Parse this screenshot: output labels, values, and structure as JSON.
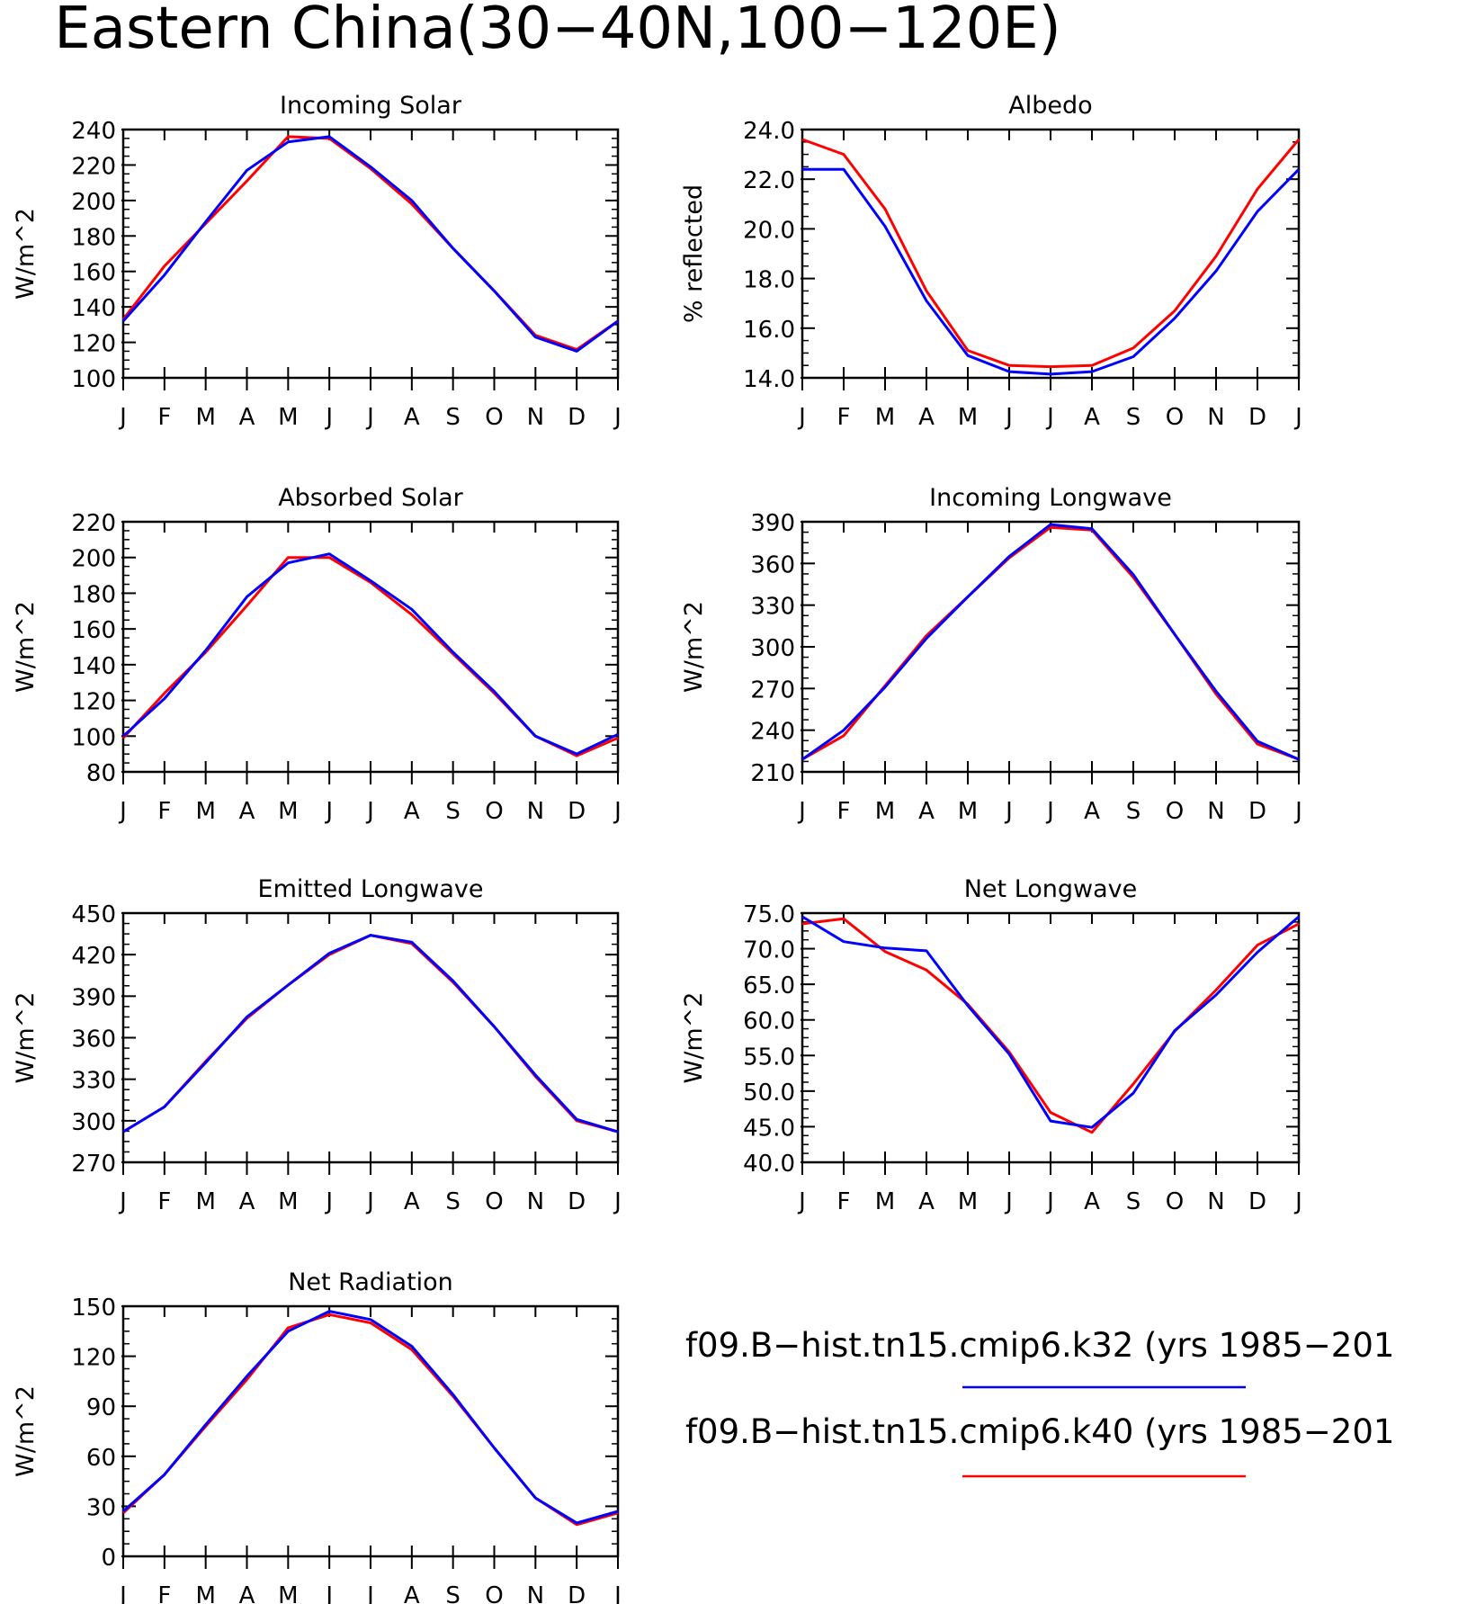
{
  "main_title": "Eastern China(30−40N,100−120E)",
  "colors": {
    "k32": "#0000ff",
    "k40": "#ff0000",
    "axis": "#000000"
  },
  "legend": [
    {
      "label": "f09.B−hist.tn15.cmip6.k32 (yrs 1985−201",
      "color": "#0000ff"
    },
    {
      "label": "f09.B−hist.tn15.cmip6.k40 (yrs 1985−201",
      "color": "#ff0000"
    }
  ],
  "chart_data": [
    {
      "type": "line",
      "title": "Incoming Solar",
      "ylabel": "W/m^2",
      "categories": [
        "J",
        "F",
        "M",
        "A",
        "M",
        "J",
        "J",
        "A",
        "S",
        "O",
        "N",
        "D",
        "J"
      ],
      "ylim": [
        100,
        240
      ],
      "yticks": [
        "100",
        "120",
        "140",
        "160",
        "180",
        "200",
        "220",
        "240"
      ],
      "series": [
        {
          "name": "k40",
          "color": "#ff0000",
          "values": [
            133,
            163,
            187,
            211,
            236,
            235,
            218,
            198,
            173,
            149,
            124,
            116,
            132
          ]
        },
        {
          "name": "k32",
          "color": "#0000ff",
          "values": [
            132,
            158,
            188,
            217,
            233,
            236,
            219,
            200,
            173,
            149,
            123,
            115,
            132
          ]
        }
      ]
    },
    {
      "type": "line",
      "title": "Albedo",
      "ylabel": "% reflected",
      "categories": [
        "J",
        "F",
        "M",
        "A",
        "M",
        "J",
        "J",
        "A",
        "S",
        "O",
        "N",
        "D",
        "J"
      ],
      "ylim": [
        14.0,
        24.0
      ],
      "yticks": [
        "14.0",
        "16.0",
        "18.0",
        "20.0",
        "22.0",
        "24.0"
      ],
      "series": [
        {
          "name": "k40",
          "color": "#ff0000",
          "values": [
            23.6,
            23.0,
            20.8,
            17.5,
            15.1,
            14.5,
            14.45,
            14.5,
            15.2,
            16.7,
            18.9,
            21.6,
            23.6
          ]
        },
        {
          "name": "k32",
          "color": "#0000ff",
          "values": [
            22.4,
            22.4,
            20.1,
            17.1,
            14.9,
            14.25,
            14.15,
            14.25,
            14.85,
            16.4,
            18.3,
            20.7,
            22.4
          ]
        }
      ]
    },
    {
      "type": "line",
      "title": "Absorbed Solar",
      "ylabel": "W/m^2",
      "categories": [
        "J",
        "F",
        "M",
        "A",
        "M",
        "J",
        "J",
        "A",
        "S",
        "O",
        "N",
        "D",
        "J"
      ],
      "ylim": [
        80,
        220
      ],
      "yticks": [
        "80",
        "100",
        "120",
        "140",
        "160",
        "180",
        "200",
        "220"
      ],
      "series": [
        {
          "name": "k40",
          "color": "#ff0000",
          "values": [
            99,
            124,
            147,
            173,
            200,
            200,
            186,
            168,
            146,
            124,
            100,
            89,
            99
          ]
        },
        {
          "name": "k32",
          "color": "#0000ff",
          "values": [
            100,
            121,
            148,
            178,
            197,
            202,
            187,
            171,
            147,
            125,
            100,
            90,
            101
          ]
        }
      ]
    },
    {
      "type": "line",
      "title": "Incoming Longwave",
      "ylabel": "W/m^2",
      "categories": [
        "J",
        "F",
        "M",
        "A",
        "M",
        "J",
        "J",
        "A",
        "S",
        "O",
        "N",
        "D",
        "J"
      ],
      "ylim": [
        210,
        390
      ],
      "yticks": [
        "210",
        "240",
        "270",
        "300",
        "330",
        "360",
        "390"
      ],
      "series": [
        {
          "name": "k40",
          "color": "#ff0000",
          "values": [
            219,
            236,
            272,
            308,
            336,
            364,
            386,
            384,
            350,
            309,
            266,
            230,
            219
          ]
        },
        {
          "name": "k32",
          "color": "#0000ff",
          "values": [
            219,
            240,
            271,
            306,
            336,
            365,
            388,
            385,
            352,
            309,
            268,
            232,
            219
          ]
        }
      ]
    },
    {
      "type": "line",
      "title": "Emitted Longwave",
      "ylabel": "W/m^2",
      "categories": [
        "J",
        "F",
        "M",
        "A",
        "M",
        "J",
        "J",
        "A",
        "S",
        "O",
        "N",
        "D",
        "J"
      ],
      "ylim": [
        270,
        450
      ],
      "yticks": [
        "270",
        "300",
        "330",
        "360",
        "390",
        "420",
        "450"
      ],
      "series": [
        {
          "name": "k40",
          "color": "#ff0000",
          "values": [
            292,
            310,
            343,
            374,
            398,
            420,
            434,
            428,
            400,
            368,
            332,
            300,
            292
          ]
        },
        {
          "name": "k32",
          "color": "#0000ff",
          "values": [
            292,
            310,
            342,
            375,
            398,
            421,
            434,
            429,
            401,
            368,
            333,
            301,
            292
          ]
        }
      ]
    },
    {
      "type": "line",
      "title": "Net Longwave",
      "ylabel": "W/m^2",
      "categories": [
        "J",
        "F",
        "M",
        "A",
        "M",
        "J",
        "J",
        "A",
        "S",
        "O",
        "N",
        "D",
        "J"
      ],
      "ylim": [
        40.0,
        75.0
      ],
      "yticks": [
        "40.0",
        "45.0",
        "50.0",
        "55.0",
        "60.0",
        "65.0",
        "70.0",
        "75.0"
      ],
      "series": [
        {
          "name": "k40",
          "color": "#ff0000",
          "values": [
            73.5,
            74.2,
            69.6,
            67.0,
            62.2,
            55.5,
            47.0,
            44.2,
            51.0,
            58.4,
            64.2,
            70.5,
            73.5
          ]
        },
        {
          "name": "k32",
          "color": "#0000ff",
          "values": [
            74.5,
            71.0,
            70.1,
            69.7,
            62.0,
            55.2,
            45.8,
            44.9,
            49.7,
            58.5,
            63.5,
            69.5,
            74.5
          ]
        }
      ]
    },
    {
      "type": "line",
      "title": "Net Radiation",
      "ylabel": "W/m^2",
      "categories": [
        "J",
        "F",
        "M",
        "A",
        "M",
        "J",
        "J",
        "A",
        "S",
        "O",
        "N",
        "D",
        "J"
      ],
      "ylim": [
        0,
        150
      ],
      "yticks": [
        "0",
        "30",
        "60",
        "90",
        "120",
        "150"
      ],
      "series": [
        {
          "name": "k40",
          "color": "#ff0000",
          "values": [
            26,
            49,
            78,
            106,
            137,
            145,
            140,
            124,
            96,
            65,
            35,
            19,
            26
          ]
        },
        {
          "name": "k32",
          "color": "#0000ff",
          "values": [
            27,
            49,
            79,
            108,
            135,
            147,
            142,
            126,
            97,
            65,
            35,
            20,
            27
          ]
        }
      ]
    }
  ]
}
